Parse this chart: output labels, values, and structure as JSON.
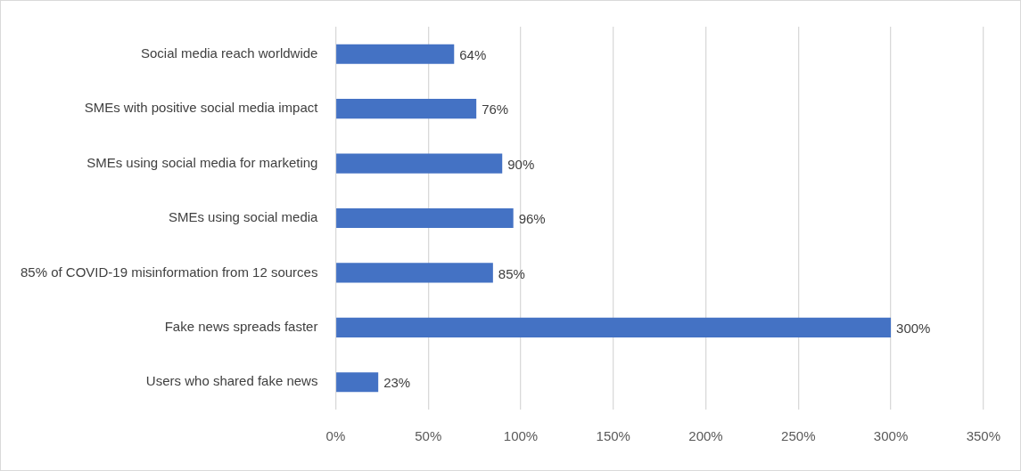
{
  "chart_data": {
    "type": "bar",
    "orientation": "horizontal",
    "categories": [
      "Social media reach worldwide",
      "SMEs with positive social media impact",
      "SMEs using social media for marketing",
      "SMEs using social media",
      "85% of COVID-19 misinformation from 12 sources",
      "Fake news spreads faster",
      "Users who shared fake news"
    ],
    "values": [
      64,
      76,
      90,
      96,
      85,
      300,
      23
    ],
    "value_labels": [
      "64%",
      "76%",
      "90%",
      "96%",
      "85%",
      "300%",
      "23%"
    ],
    "color": "#4472c4",
    "xlim": [
      0,
      350
    ],
    "xticks": [
      {
        "value": 0,
        "label": "0%"
      },
      {
        "value": 50,
        "label": "50%"
      },
      {
        "value": 100,
        "label": "100%"
      },
      {
        "value": 150,
        "label": "150%"
      },
      {
        "value": 200,
        "label": "200%"
      },
      {
        "value": 250,
        "label": "250%"
      },
      {
        "value": 300,
        "label": "300%"
      },
      {
        "value": 350,
        "label": "350%"
      }
    ],
    "grid": "x"
  }
}
